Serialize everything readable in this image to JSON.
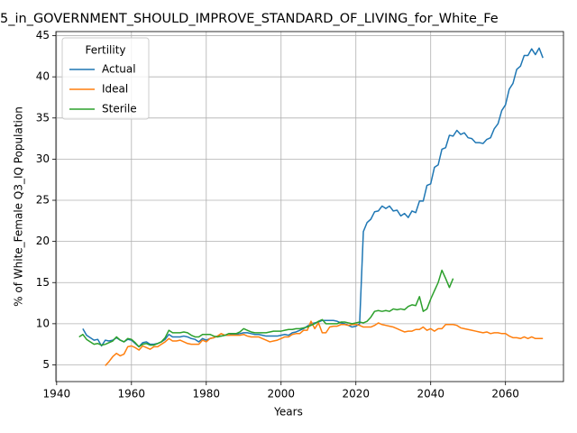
{
  "chart_data": {
    "type": "line",
    "title": "5_in_GOVERNMENT_SHOULD_IMPROVE_STANDARD_OF_LIVING_for_White_Fe",
    "x_label": "Years",
    "y_label": "% of White_Female Q3_IQ Population",
    "legend_title": "Fertility",
    "legend_position": "upper left",
    "grid": true,
    "x": [
      1946,
      1947,
      1948,
      1949,
      1950,
      1951,
      1952,
      1953,
      1954,
      1955,
      1956,
      1957,
      1958,
      1959,
      1960,
      1961,
      1962,
      1963,
      1964,
      1965,
      1966,
      1967,
      1968,
      1969,
      1970,
      1971,
      1972,
      1973,
      1974,
      1975,
      1976,
      1977,
      1978,
      1979,
      1980,
      1981,
      1982,
      1983,
      1984,
      1985,
      1986,
      1987,
      1988,
      1989,
      1990,
      1991,
      1992,
      1993,
      1994,
      1995,
      1996,
      1997,
      1998,
      1999,
      2000,
      2001,
      2002,
      2003,
      2004,
      2005,
      2006,
      2007,
      2008,
      2009,
      2010,
      2011,
      2012,
      2013,
      2014,
      2015,
      2016,
      2017,
      2018,
      2019,
      2020,
      2021,
      2022,
      2023,
      2024,
      2025,
      2026,
      2027,
      2028,
      2029,
      2030,
      2031,
      2032,
      2033,
      2034,
      2035,
      2036,
      2037,
      2038,
      2039,
      2040,
      2041,
      2042,
      2043,
      2044,
      2045,
      2046,
      2047,
      2048,
      2049,
      2050,
      2051,
      2052,
      2053,
      2054,
      2055,
      2056,
      2057,
      2058,
      2059,
      2060,
      2061,
      2062,
      2063,
      2064,
      2065,
      2066,
      2067,
      2068,
      2069,
      2070
    ],
    "series": [
      {
        "name": "Actual",
        "color": "#1f77b4",
        "values": [
          null,
          9.4,
          8.6,
          8.3,
          8.0,
          8.1,
          7.3,
          8.0,
          7.9,
          8.0,
          8.3,
          8.0,
          7.8,
          8.1,
          8.0,
          7.6,
          7.2,
          7.7,
          7.8,
          7.5,
          7.5,
          7.6,
          7.8,
          8.1,
          8.7,
          8.4,
          8.4,
          8.4,
          8.5,
          8.4,
          8.2,
          8.1,
          7.8,
          8.2,
          8.0,
          8.2,
          8.3,
          8.5,
          8.5,
          8.6,
          8.6,
          8.7,
          8.7,
          8.8,
          8.9,
          8.9,
          8.8,
          8.7,
          8.7,
          8.6,
          8.5,
          8.5,
          8.5,
          8.5,
          8.6,
          8.7,
          8.6,
          8.9,
          9.0,
          9.2,
          9.4,
          9.7,
          10.0,
          10.1,
          10.2,
          10.4,
          10.4,
          10.4,
          10.4,
          10.3,
          10.1,
          10.0,
          9.8,
          9.6,
          9.7,
          10.0,
          21.2,
          22.3,
          22.7,
          23.6,
          23.7,
          24.3,
          24.0,
          24.3,
          23.7,
          23.8,
          23.1,
          23.4,
          22.9,
          23.7,
          23.5,
          24.9,
          24.9,
          26.8,
          27.0,
          29.0,
          29.3,
          31.2,
          31.4,
          32.9,
          32.8,
          33.5,
          33.0,
          33.2,
          32.6,
          32.5,
          32.0,
          32.0,
          31.9,
          32.4,
          32.6,
          33.7,
          34.3,
          35.9,
          36.6,
          38.5,
          39.2,
          40.9,
          41.3,
          42.6,
          42.6,
          43.4,
          42.7,
          43.5,
          42.3
        ]
      },
      {
        "name": "Ideal",
        "color": "#ff7f0e",
        "values": [
          null,
          null,
          null,
          null,
          null,
          null,
          null,
          4.9,
          5.4,
          6.0,
          6.4,
          6.1,
          6.3,
          7.2,
          7.3,
          7.1,
          6.8,
          7.3,
          7.1,
          6.9,
          7.2,
          7.2,
          7.5,
          7.8,
          8.2,
          7.9,
          7.9,
          8.0,
          7.8,
          7.6,
          7.5,
          7.5,
          7.5,
          8.0,
          7.8,
          8.2,
          8.3,
          8.5,
          8.8,
          8.6,
          8.6,
          8.6,
          8.6,
          8.6,
          8.7,
          8.5,
          8.4,
          8.4,
          8.4,
          8.2,
          8.0,
          7.8,
          7.9,
          8.0,
          8.2,
          8.4,
          8.4,
          8.7,
          8.8,
          8.8,
          9.2,
          9.2,
          10.3,
          9.4,
          10.1,
          8.9,
          8.9,
          9.6,
          9.7,
          9.7,
          9.9,
          9.9,
          9.8,
          9.9,
          9.9,
          9.8,
          9.6,
          9.6,
          9.6,
          9.8,
          10.1,
          9.9,
          9.8,
          9.7,
          9.6,
          9.4,
          9.2,
          9.0,
          9.1,
          9.1,
          9.3,
          9.3,
          9.6,
          9.2,
          9.4,
          9.1,
          9.4,
          9.4,
          9.9,
          9.9,
          9.9,
          9.8,
          9.5,
          9.4,
          9.3,
          9.2,
          9.1,
          9.0,
          8.9,
          9.0,
          8.8,
          8.9,
          8.9,
          8.8,
          8.8,
          8.5,
          8.3,
          8.3,
          8.2,
          8.4,
          8.2,
          8.4,
          8.2,
          8.2,
          8.2
        ]
      },
      {
        "name": "Sterile",
        "color": "#2ca02c",
        "values": [
          8.4,
          8.7,
          8.1,
          7.8,
          7.5,
          7.6,
          7.4,
          7.5,
          7.7,
          7.9,
          8.4,
          8.0,
          7.8,
          8.2,
          8.1,
          7.7,
          7.2,
          7.5,
          7.6,
          7.4,
          7.4,
          7.6,
          7.8,
          8.3,
          9.2,
          8.9,
          8.9,
          8.9,
          9.0,
          8.9,
          8.6,
          8.4,
          8.4,
          8.7,
          8.7,
          8.7,
          8.5,
          8.4,
          8.5,
          8.6,
          8.8,
          8.8,
          8.8,
          9.0,
          9.4,
          9.2,
          9.0,
          8.9,
          8.9,
          8.9,
          8.9,
          9.0,
          9.1,
          9.1,
          9.1,
          9.2,
          9.3,
          9.3,
          9.4,
          9.4,
          9.5,
          9.6,
          9.8,
          10.0,
          10.3,
          10.5,
          10.0,
          10.0,
          10.0,
          10.0,
          10.2,
          10.2,
          10.1,
          10.0,
          10.1,
          10.2,
          10.1,
          10.3,
          10.8,
          11.5,
          11.6,
          11.5,
          11.6,
          11.5,
          11.8,
          11.7,
          11.8,
          11.7,
          12.1,
          12.3,
          12.2,
          13.3,
          11.5,
          11.8,
          13.0,
          14.0,
          15.0,
          16.5,
          15.5,
          14.4,
          15.5,
          null,
          null,
          null,
          null,
          null,
          null,
          null,
          null,
          null,
          null,
          null,
          null,
          null,
          null,
          null,
          null,
          null,
          null,
          null,
          null,
          null,
          null,
          null,
          null
        ]
      }
    ],
    "xlim": [
      1939.8,
      2075.5
    ],
    "xticks": [
      1940,
      1960,
      1980,
      2000,
      2020,
      2040,
      2060
    ],
    "ylim": [
      2.97,
      45.5
    ],
    "yticks": [
      5,
      10,
      15,
      20,
      25,
      30,
      35,
      40,
      45
    ]
  }
}
